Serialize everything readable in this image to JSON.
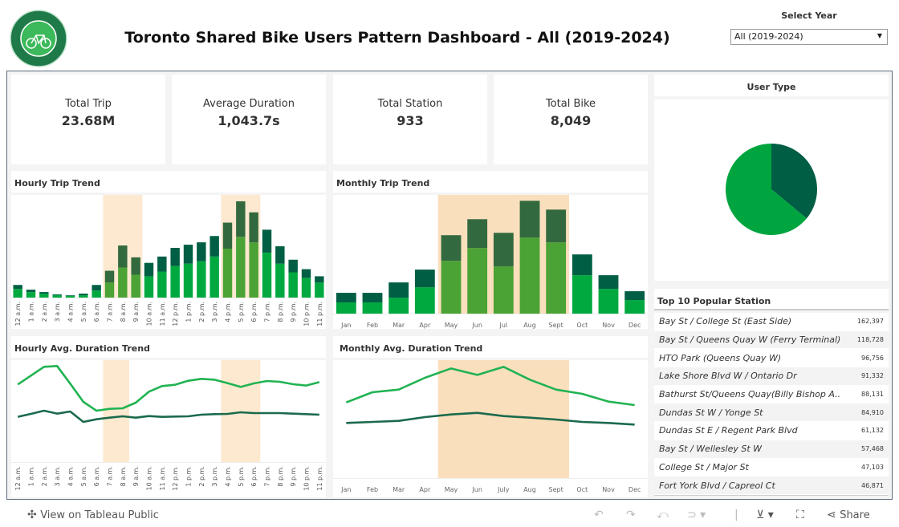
{
  "header": {
    "title": "Toronto Shared Bike Users Pattern Dashboard - All (2019-2024)",
    "logo_text": "BIKE SHARE TORONTO"
  },
  "year_filter": {
    "label": "Select Year",
    "selected": "All (2019-2024)"
  },
  "kpis": [
    {
      "label": "Total Trip",
      "value": "23.68M"
    },
    {
      "label": "Average Duration",
      "value": "1,043.7s"
    },
    {
      "label": "Total Station",
      "value": "933"
    },
    {
      "label": "Total Bike",
      "value": "8,049"
    }
  ],
  "user_type": {
    "title": "User Type",
    "slices": [
      {
        "share": 0.64,
        "color": "#00a540"
      },
      {
        "share": 0.36,
        "color": "#005e44"
      }
    ]
  },
  "colors": {
    "light": "#00a940",
    "dark": "#005e44",
    "highlight": "#fde9d0",
    "highlight_light": "#4ca335",
    "highlight_dark": "#33693e",
    "line_light": "#21b352",
    "line_dark": "#1b6a4c"
  },
  "chart_data": [
    {
      "type": "bar",
      "stacked": true,
      "title": "Hourly Trip Trend",
      "categories": [
        "12 a.m.",
        "1 a.m.",
        "2 a.m.",
        "3 a.m.",
        "4 a.m.",
        "5 a.m.",
        "6 a.m.",
        "7 a.m.",
        "8 a.m.",
        "9 a.m.",
        "10 a.m.",
        "11 a.m.",
        "12 p.m.",
        "1 p.m.",
        "2 p.m.",
        "3 p.m.",
        "4 p.m.",
        "5 p.m.",
        "6 p.m.",
        "7 p.m.",
        "8 p.m.",
        "9 p.m.",
        "10 p.m.",
        "11 p.m."
      ],
      "highlight": [
        [
          "7 a.m.",
          "9 a.m."
        ],
        [
          "4 p.m.",
          "6 p.m."
        ]
      ],
      "series": [
        {
          "values": [
            33,
            21,
            15,
            9,
            7,
            9,
            27,
            57,
            114,
            87,
            81,
            99,
            120,
            129,
            138,
            156,
            186,
            231,
            210,
            171,
            129,
            96,
            75,
            57
          ]
        },
        {
          "values": [
            15,
            9,
            6,
            3,
            2,
            6,
            21,
            45,
            84,
            66,
            51,
            57,
            69,
            72,
            72,
            78,
            99,
            135,
            114,
            87,
            66,
            48,
            33,
            24
          ]
        }
      ],
      "ylim": [
        0,
        375
      ]
    },
    {
      "type": "bar",
      "stacked": true,
      "title": "Monthly Trip Trend",
      "categories": [
        "Jan",
        "Feb",
        "Mar",
        "Apr",
        "May",
        "Jun",
        "Jul",
        "Aug",
        "Sept",
        "Oct",
        "Nov",
        "Dec"
      ],
      "highlight": [
        [
          "May",
          "Sept"
        ]
      ],
      "series": [
        {
          "values": [
            42,
            42,
            60,
            99,
            198,
            246,
            177,
            285,
            267,
            144,
            93,
            51
          ]
        },
        {
          "values": [
            36,
            36,
            57,
            66,
            96,
            108,
            126,
            138,
            123,
            78,
            51,
            33
          ]
        }
      ],
      "ylim": [
        0,
        430
      ]
    },
    {
      "type": "line",
      "title": "Hourly Avg. Duration Trend",
      "categories": [
        "12 a.m.",
        "1 a.m.",
        "2 a.m.",
        "3 a.m.",
        "4 a.m.",
        "5 a.m.",
        "6 a.m.",
        "7 a.m.",
        "8 a.m.",
        "9 a.m.",
        "10 a.m.",
        "11 a.m.",
        "12 p.m.",
        "1 p.m.",
        "2 p.m.",
        "3 p.m.",
        "4 p.m.",
        "5 p.m.",
        "6 p.m.",
        "7 p.m.",
        "8 p.m.",
        "9 p.m.",
        "10 p.m.",
        "11 p.m."
      ],
      "highlight": [
        [
          "7 a.m.",
          "8 a.m."
        ],
        [
          "4 p.m.",
          "6 p.m."
        ]
      ],
      "series": [
        {
          "values": [
            290,
            323,
            356,
            359,
            293,
            225,
            192,
            199,
            201,
            222,
            263,
            284,
            289,
            304,
            311,
            308,
            295,
            281,
            294,
            303,
            300,
            291,
            286,
            299
          ]
        },
        {
          "values": [
            169,
            180,
            192,
            181,
            189,
            150,
            160,
            166,
            171,
            166,
            172,
            169,
            170,
            171,
            177,
            179,
            180,
            186,
            183,
            183,
            183,
            181,
            179,
            177
          ]
        }
      ],
      "ylim": [
        0,
        381
      ]
    },
    {
      "type": "line",
      "title": "Monthly Avg. Duration Trend",
      "categories": [
        "Jan",
        "Feb",
        "Mar",
        "Apr",
        "May",
        "Jun",
        "July",
        "Aug",
        "Sept",
        "Oct",
        "Nov",
        "Dec"
      ],
      "highlight": [
        [
          "May",
          "Sept"
        ]
      ],
      "series": [
        {
          "values": [
            283,
            321,
            331,
            375,
            410,
            386,
            416,
            368,
            331,
            315,
            286,
            273
          ]
        },
        {
          "values": [
            206,
            210,
            214,
            228,
            238,
            244,
            232,
            226,
            219,
            210,
            206,
            200
          ]
        }
      ],
      "ylim": [
        0,
        441
      ]
    }
  ],
  "top_stations": {
    "title": "Top 10 Popular Station",
    "rows": [
      {
        "name": "Bay St / College St (East Side)",
        "trips": "162,397"
      },
      {
        "name": "Bay St / Queens Quay W (Ferry Terminal)",
        "trips": "118,728"
      },
      {
        "name": "HTO Park (Queens Quay W)",
        "trips": "96,756"
      },
      {
        "name": "Lake Shore Blvd W / Ontario Dr",
        "trips": "91,332"
      },
      {
        "name": "Bathurst St/Queens Quay(Billy Bishop A..",
        "trips": "88,131"
      },
      {
        "name": "Dundas St W / Yonge St",
        "trips": "84,910"
      },
      {
        "name": "Dundas St E / Regent Park Blvd",
        "trips": "61,132"
      },
      {
        "name": "Bay St / Wellesley St W",
        "trips": "57,468"
      },
      {
        "name": "College St / Major St",
        "trips": "47,103"
      },
      {
        "name": "Fort York  Blvd / Capreol Ct",
        "trips": "46,871"
      }
    ]
  },
  "toolbar": {
    "view_label": "View on Tableau Public",
    "share_label": "Share"
  }
}
